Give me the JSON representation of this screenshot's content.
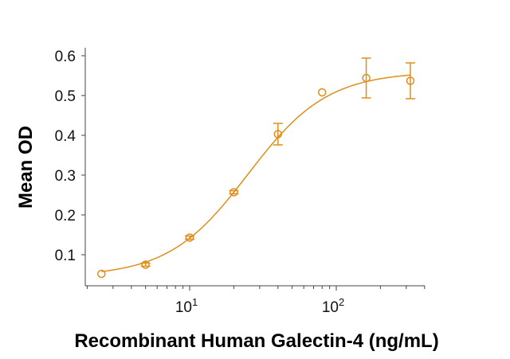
{
  "chart_data": {
    "type": "scatter",
    "title": "",
    "xlabel": "Recombinant Human Galectin-4 (ng/mL)",
    "ylabel": "Mean OD",
    "xscale": "log",
    "xlim": [
      1.94,
      401
    ],
    "ylim": [
      0.022,
      0.62
    ],
    "xticks": [
      {
        "value": 10,
        "base": "10",
        "exp": "1"
      },
      {
        "value": 100,
        "base": "10",
        "exp": "2"
      }
    ],
    "yticks": [
      {
        "value": 0.1,
        "label": "0.1"
      },
      {
        "value": 0.2,
        "label": "0.2"
      },
      {
        "value": 0.3,
        "label": "0.3"
      },
      {
        "value": 0.4,
        "label": "0.4"
      },
      {
        "value": 0.5,
        "label": "0.5"
      },
      {
        "value": 0.6,
        "label": "0.6"
      }
    ],
    "grid": false,
    "color": "#E08E1B",
    "points": [
      {
        "x": 2.5,
        "y": 0.052,
        "err": 0
      },
      {
        "x": 5,
        "y": 0.075,
        "err": 0.004
      },
      {
        "x": 10,
        "y": 0.143,
        "err": 0.004
      },
      {
        "x": 20,
        "y": 0.257,
        "err": 0.004
      },
      {
        "x": 40,
        "y": 0.403,
        "err": 0.027
      },
      {
        "x": 80,
        "y": 0.508,
        "err": 0
      },
      {
        "x": 160,
        "y": 0.544,
        "err": 0.05
      },
      {
        "x": 320,
        "y": 0.537,
        "err": 0.045
      }
    ],
    "fit": {
      "model": "4PL",
      "bottom": 0.045,
      "top": 0.56,
      "ec50": 25,
      "hill": 1.6
    }
  }
}
